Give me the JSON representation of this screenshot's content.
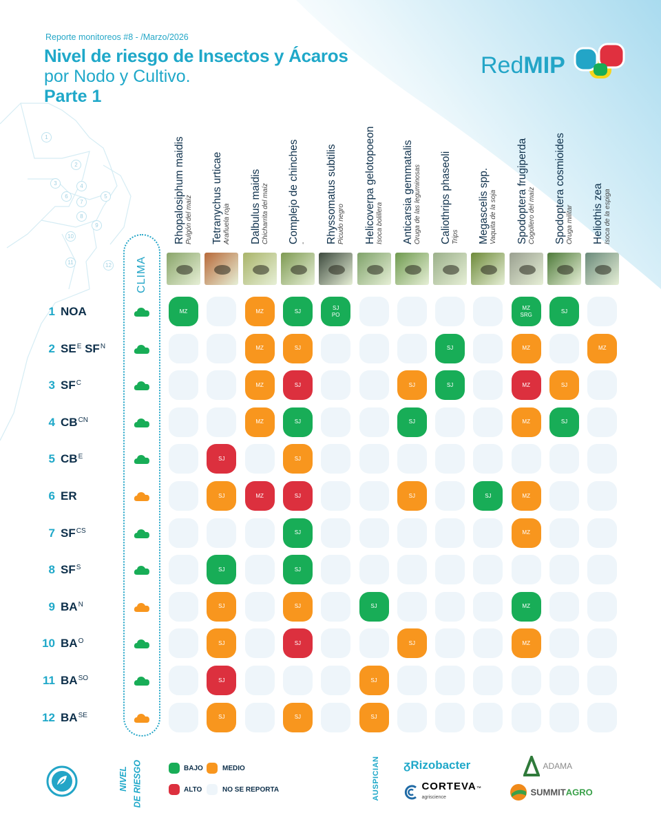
{
  "header": {
    "report": "Reporte monitoreos #8 - /Marzo/2026",
    "title_line1": "Nivel de riesgo de Insectos y Ácaros",
    "title_line2": "por Nodo y Cultivo.",
    "title_line3": "Parte 1"
  },
  "logo": {
    "red": "Red",
    "mip": "MIP"
  },
  "map_numbers": [
    "1",
    "2",
    "3",
    "4",
    "5",
    "6",
    "7",
    "8",
    "9",
    "10",
    "11",
    "12"
  ],
  "clima_label": "CLIMA",
  "colors": {
    "bajo": "#18ad57",
    "medio": "#f8961e",
    "alto": "#dc303e",
    "none": "#eef5fa",
    "accent": "#1fa8c9",
    "dark": "#0d2f4a"
  },
  "pests": [
    {
      "sci": "Rhopalosiphum maidis",
      "common": "Pulgón del maíz",
      "photo": "#8aa56a"
    },
    {
      "sci": "Tetranychus urticae",
      "common": "Arañuela roja",
      "photo": "#b86a3a"
    },
    {
      "sci": "Dalbulus maidis",
      "common": "Chicharrita del maíz",
      "photo": "#a9b46a"
    },
    {
      "sci": "Complejo de chinches",
      "common": "-",
      "photo": "#7e9a52"
    },
    {
      "sci": "Rhyssomatus subtilis",
      "common": "Picudo negro",
      "photo": "#3d4a3e"
    },
    {
      "sci": "Helicoverpa gelotopoeon",
      "common": "Isoca bolillera",
      "photo": "#7fa26a"
    },
    {
      "sci": "Anticarsia gemmatalis",
      "common": "Oruga de las leguminosas",
      "photo": "#6f9a4f"
    },
    {
      "sci": "Caliothrips phaseoli",
      "common": "Trips",
      "photo": "#9bb08a"
    },
    {
      "sci": "Megascelis spp.",
      "common": "Vaquita de la soja",
      "photo": "#6e8a3a"
    },
    {
      "sci": "Spodoptera frugiperda",
      "common": "Cogollero del maíz",
      "photo": "#9aa090"
    },
    {
      "sci": "Spodoptera cosmioides",
      "common": "Oruga militar",
      "photo": "#4e7a3a"
    },
    {
      "sci": "Heliothis zea",
      "common": "Isoca de la espiga",
      "photo": "#6a8a7a"
    }
  ],
  "rows": [
    {
      "num": "1",
      "name": "NOA",
      "sup": "",
      "cloud": "green",
      "cells": [
        {
          "r": "bajo",
          "l": [
            "MZ"
          ]
        },
        null,
        {
          "r": "medio",
          "l": [
            "MZ"
          ]
        },
        {
          "r": "bajo",
          "l": [
            "SJ"
          ]
        },
        {
          "r": "bajo",
          "l": [
            "SJ",
            "PO"
          ]
        },
        null,
        null,
        null,
        null,
        {
          "r": "bajo",
          "l": [
            "MZ",
            "SRG"
          ]
        },
        {
          "r": "bajo",
          "l": [
            "SJ"
          ]
        },
        null
      ]
    },
    {
      "num": "2",
      "name": "SE",
      "sup": "E",
      "name2": "SF",
      "sup2": "N",
      "cloud": "green",
      "cells": [
        null,
        null,
        {
          "r": "medio",
          "l": [
            "MZ"
          ]
        },
        {
          "r": "medio",
          "l": [
            "SJ"
          ]
        },
        null,
        null,
        null,
        {
          "r": "bajo",
          "l": [
            "SJ"
          ]
        },
        null,
        {
          "r": "medio",
          "l": [
            "MZ"
          ]
        },
        null,
        {
          "r": "medio",
          "l": [
            "MZ"
          ]
        }
      ]
    },
    {
      "num": "3",
      "name": "SF",
      "sup": "C",
      "cloud": "green",
      "cells": [
        null,
        null,
        {
          "r": "medio",
          "l": [
            "MZ"
          ]
        },
        {
          "r": "alto",
          "l": [
            "SJ"
          ]
        },
        null,
        null,
        {
          "r": "medio",
          "l": [
            "SJ"
          ]
        },
        {
          "r": "bajo",
          "l": [
            "SJ"
          ]
        },
        null,
        {
          "r": "alto",
          "l": [
            "MZ"
          ]
        },
        {
          "r": "medio",
          "l": [
            "SJ"
          ]
        },
        null
      ]
    },
    {
      "num": "4",
      "name": "CB",
      "sup": "CN",
      "cloud": "green",
      "cells": [
        null,
        null,
        {
          "r": "medio",
          "l": [
            "MZ"
          ]
        },
        {
          "r": "bajo",
          "l": [
            "SJ"
          ]
        },
        null,
        null,
        {
          "r": "bajo",
          "l": [
            "SJ"
          ]
        },
        null,
        null,
        {
          "r": "medio",
          "l": [
            "MZ"
          ]
        },
        {
          "r": "bajo",
          "l": [
            "SJ"
          ]
        },
        null
      ]
    },
    {
      "num": "5",
      "name": "CB",
      "sup": "E",
      "cloud": "green",
      "cells": [
        null,
        {
          "r": "alto",
          "l": [
            "SJ"
          ]
        },
        null,
        {
          "r": "medio",
          "l": [
            "SJ"
          ]
        },
        null,
        null,
        null,
        null,
        null,
        null,
        null,
        null
      ]
    },
    {
      "num": "6",
      "name": "ER",
      "sup": "",
      "cloud": "orange",
      "cells": [
        null,
        {
          "r": "medio",
          "l": [
            "SJ"
          ]
        },
        {
          "r": "alto",
          "l": [
            "MZ"
          ]
        },
        {
          "r": "alto",
          "l": [
            "SJ"
          ]
        },
        null,
        null,
        {
          "r": "medio",
          "l": [
            "SJ"
          ]
        },
        null,
        {
          "r": "bajo",
          "l": [
            "SJ"
          ]
        },
        {
          "r": "medio",
          "l": [
            "MZ"
          ]
        },
        null,
        null
      ]
    },
    {
      "num": "7",
      "name": "SF",
      "sup": "CS",
      "cloud": "green",
      "cells": [
        null,
        null,
        null,
        {
          "r": "bajo",
          "l": [
            "SJ"
          ]
        },
        null,
        null,
        null,
        null,
        null,
        {
          "r": "medio",
          "l": [
            "MZ"
          ]
        },
        null,
        null
      ]
    },
    {
      "num": "8",
      "name": "SF",
      "sup": "S",
      "cloud": "green",
      "cells": [
        null,
        {
          "r": "bajo",
          "l": [
            "SJ"
          ]
        },
        null,
        {
          "r": "bajo",
          "l": [
            "SJ"
          ]
        },
        null,
        null,
        null,
        null,
        null,
        null,
        null,
        null
      ]
    },
    {
      "num": "9",
      "name": "BA",
      "sup": "N",
      "cloud": "orange",
      "cells": [
        null,
        {
          "r": "medio",
          "l": [
            "SJ"
          ]
        },
        null,
        {
          "r": "medio",
          "l": [
            "SJ"
          ]
        },
        null,
        {
          "r": "bajo",
          "l": [
            "SJ"
          ]
        },
        null,
        null,
        null,
        {
          "r": "bajo",
          "l": [
            "MZ"
          ]
        },
        null,
        null
      ]
    },
    {
      "num": "10",
      "name": "BA",
      "sup": "O",
      "cloud": "green",
      "cells": [
        null,
        {
          "r": "medio",
          "l": [
            "SJ"
          ]
        },
        null,
        {
          "r": "alto",
          "l": [
            "SJ"
          ]
        },
        null,
        null,
        {
          "r": "medio",
          "l": [
            "SJ"
          ]
        },
        null,
        null,
        {
          "r": "medio",
          "l": [
            "MZ"
          ]
        },
        null,
        null
      ]
    },
    {
      "num": "11",
      "name": "BA",
      "sup": "SO",
      "cloud": "green",
      "cells": [
        null,
        {
          "r": "alto",
          "l": [
            "SJ"
          ]
        },
        null,
        null,
        null,
        {
          "r": "medio",
          "l": [
            "SJ"
          ]
        },
        null,
        null,
        null,
        null,
        null,
        null
      ]
    },
    {
      "num": "12",
      "name": "BA",
      "sup": "SE",
      "cloud": "orange",
      "cells": [
        null,
        {
          "r": "medio",
          "l": [
            "SJ"
          ]
        },
        null,
        {
          "r": "medio",
          "l": [
            "SJ"
          ]
        },
        null,
        {
          "r": "medio",
          "l": [
            "SJ"
          ]
        },
        null,
        null,
        null,
        null,
        null,
        null
      ]
    }
  ],
  "legend": {
    "title": "NIVEL DE RIESGO",
    "title_line1": "NIVEL",
    "title_line2": "DE RIESGO",
    "bajo": "BAJO",
    "medio": "MEDIO",
    "alto": "ALTO",
    "none": "NO SE REPORTA"
  },
  "sponsors": {
    "label": "AUSPICIAN",
    "rizobacter": "Rizobacter",
    "adama": "ADAMA",
    "corteva": "CORTEVA",
    "corteva_sub": "agriscience",
    "corteva_tm": "™",
    "summit1": "SUMMIT",
    "summit2": "AGRO"
  }
}
